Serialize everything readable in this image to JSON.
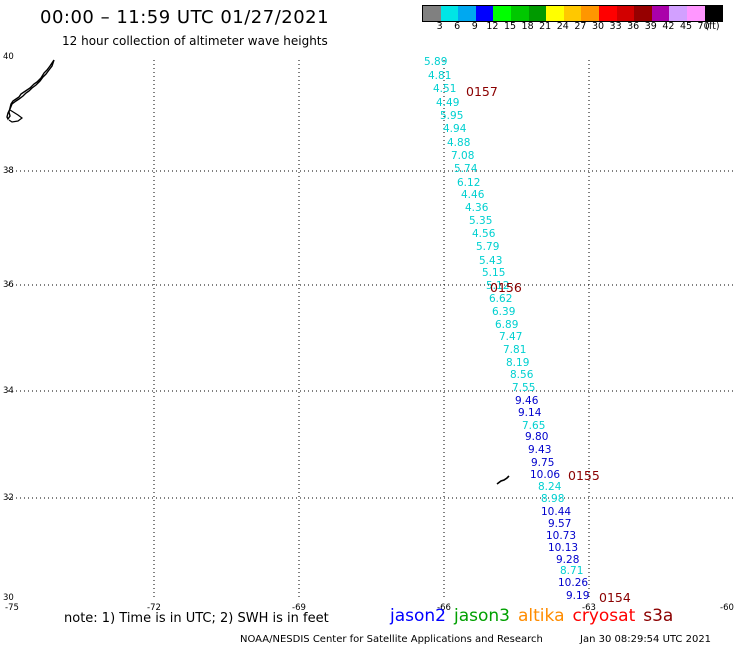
{
  "title": "00:00 – 11:59 UTC 01/27/2021",
  "subtitle": "12 hour collection of altimeter wave heights",
  "legend": {
    "labels": [
      "3",
      "6",
      "9",
      "12",
      "15",
      "18",
      "21",
      "24",
      "27",
      "30",
      "33",
      "36",
      "39",
      "42",
      "45",
      "70",
      "(ft)"
    ],
    "colors": [
      "#808080",
      "#00e5e5",
      "#00a8f0",
      "#0000ff",
      "#00ff00",
      "#00c800",
      "#009a00",
      "#ffff00",
      "#ffc800",
      "#ff9600",
      "#ff0000",
      "#d20000",
      "#960000",
      "#aa00aa",
      "#d2a0ff",
      "#ff96ff",
      "#000000"
    ]
  },
  "axes": {
    "lat_labels": [
      "40",
      "38",
      "36",
      "34",
      "32",
      "30"
    ],
    "lon_labels": [
      "-75",
      "-72",
      "-69",
      "-66",
      "-63",
      "-60"
    ]
  },
  "tracks": [
    {
      "label": "0157",
      "color": "#8b0000"
    },
    {
      "label": "0156",
      "color": "#8b0000"
    },
    {
      "label": "0155",
      "color": "#8b0000"
    },
    {
      "label": "0154",
      "color": "#8b0000"
    }
  ],
  "observations": [
    {
      "v": "5.89",
      "c": "#00d0d0"
    },
    {
      "v": "4.81",
      "c": "#00d0d0"
    },
    {
      "v": "4.51",
      "c": "#00d0d0"
    },
    {
      "v": "4.49",
      "c": "#00d0d0"
    },
    {
      "v": "5.95",
      "c": "#00d0d0"
    },
    {
      "v": "4.94",
      "c": "#00d0d0"
    },
    {
      "v": "4.88",
      "c": "#00d0d0"
    },
    {
      "v": "7.08",
      "c": "#00d0d0"
    },
    {
      "v": "5.74",
      "c": "#00d0d0"
    },
    {
      "v": "6.12",
      "c": "#00d0d0"
    },
    {
      "v": "4.46",
      "c": "#00d0d0"
    },
    {
      "v": "4.36",
      "c": "#00d0d0"
    },
    {
      "v": "5.35",
      "c": "#00d0d0"
    },
    {
      "v": "4.56",
      "c": "#00d0d0"
    },
    {
      "v": "5.79",
      "c": "#00d0d0"
    },
    {
      "v": "5.43",
      "c": "#00d0d0"
    },
    {
      "v": "5.15",
      "c": "#00d0d0"
    },
    {
      "v": "5.12",
      "c": "#00d0d0"
    },
    {
      "v": "6.62",
      "c": "#00d0d0"
    },
    {
      "v": "6.39",
      "c": "#00d0d0"
    },
    {
      "v": "6.89",
      "c": "#00d0d0"
    },
    {
      "v": "7.47",
      "c": "#00d0d0"
    },
    {
      "v": "7.81",
      "c": "#00d0d0"
    },
    {
      "v": "8.19",
      "c": "#00d0d0"
    },
    {
      "v": "8.56",
      "c": "#00d0d0"
    },
    {
      "v": "7.55",
      "c": "#00d0d0"
    },
    {
      "v": "9.46",
      "c": "#0000cc"
    },
    {
      "v": "9.14",
      "c": "#0000cc"
    },
    {
      "v": "7.65",
      "c": "#00d0d0"
    },
    {
      "v": "9.80",
      "c": "#0000cc"
    },
    {
      "v": "9.43",
      "c": "#0000cc"
    },
    {
      "v": "9.75",
      "c": "#0000cc"
    },
    {
      "v": "10.06",
      "c": "#0000cc"
    },
    {
      "v": "8.24",
      "c": "#00d0d0"
    },
    {
      "v": "8.98",
      "c": "#00d0d0"
    },
    {
      "v": "10.44",
      "c": "#0000cc"
    },
    {
      "v": "9.57",
      "c": "#0000cc"
    },
    {
      "v": "10.73",
      "c": "#0000cc"
    },
    {
      "v": "10.13",
      "c": "#0000cc"
    },
    {
      "v": "9.28",
      "c": "#0000cc"
    },
    {
      "v": "8.71",
      "c": "#00d0d0"
    },
    {
      "v": "10.26",
      "c": "#0000cc"
    },
    {
      "v": "9.19",
      "c": "#0000cc"
    }
  ],
  "footer": {
    "note": "note:  1) Time is in UTC;  2) SWH is in feet",
    "satellites": [
      {
        "name": "jason2",
        "color": "#0000ff"
      },
      {
        "name": "jason3",
        "color": "#00a000"
      },
      {
        "name": "altika",
        "color": "#ff8c00"
      },
      {
        "name": "cryosat",
        "color": "#ff0000"
      },
      {
        "name": "s3a",
        "color": "#8b0000"
      }
    ],
    "credit": "NOAA/NESDIS Center for Satellite Applications and Research",
    "timestamp": "Jan 30 08:29:54 UTC 2021"
  }
}
